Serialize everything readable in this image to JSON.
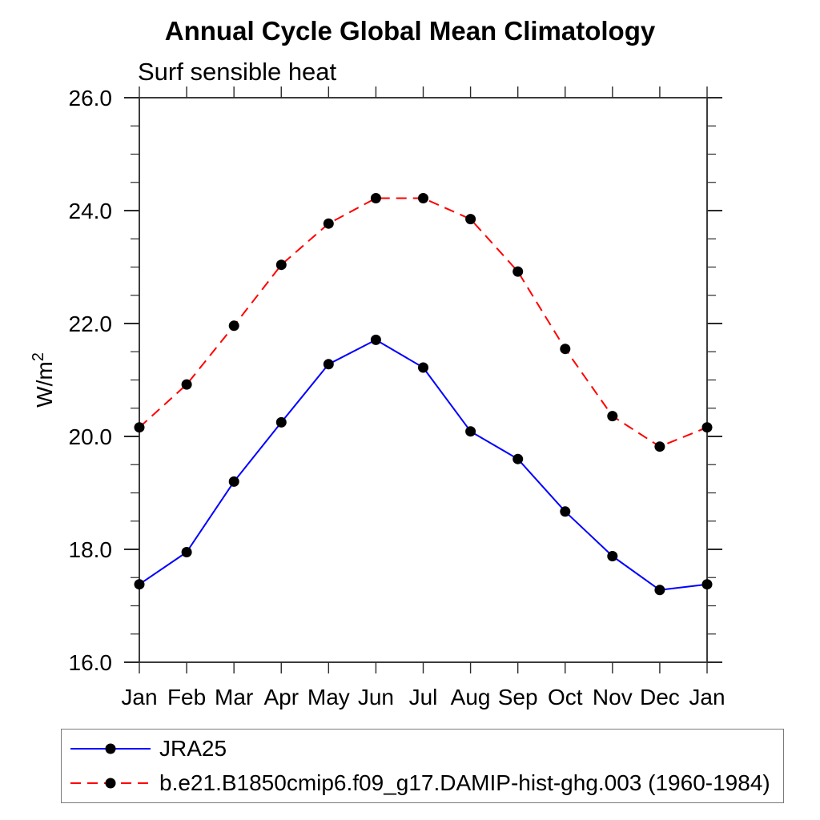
{
  "title": "Annual Cycle Global Mean Climatology",
  "subtitle": "Surf sensible heat",
  "chart_data": {
    "type": "line",
    "title": "Annual Cycle Global Mean Climatology",
    "subtitle": "Surf sensible heat",
    "ylabel": "W/m²",
    "ylim": [
      16.0,
      26.0
    ],
    "ytick_major": 2.0,
    "ytick_minor": 0.5,
    "ytick_labels": [
      "16.0",
      "18.0",
      "20.0",
      "22.0",
      "24.0",
      "26.0"
    ],
    "grid": false,
    "legend_position": "bottom-left",
    "categories": [
      "Jan",
      "Feb",
      "Mar",
      "Apr",
      "May",
      "Jun",
      "Jul",
      "Aug",
      "Sep",
      "Oct",
      "Nov",
      "Dec",
      "Jan"
    ],
    "series": [
      {
        "name": "JRA25",
        "color": "#0000ff",
        "style": "solid",
        "marker": "filled-circle",
        "marker_color": "#000000",
        "values": [
          17.38,
          17.95,
          19.2,
          20.25,
          21.28,
          21.71,
          21.22,
          20.09,
          19.6,
          18.67,
          17.88,
          17.28,
          17.38
        ]
      },
      {
        "name": "b.e21.B1850cmip6.f09_g17.DAMIP-hist-ghg.003 (1960-1984)",
        "color": "#ff0000",
        "style": "dashed",
        "marker": "filled-circle",
        "marker_color": "#000000",
        "values": [
          20.16,
          20.92,
          21.96,
          23.04,
          23.77,
          24.22,
          24.22,
          23.85,
          22.92,
          21.55,
          20.36,
          19.82,
          20.16
        ]
      }
    ]
  }
}
